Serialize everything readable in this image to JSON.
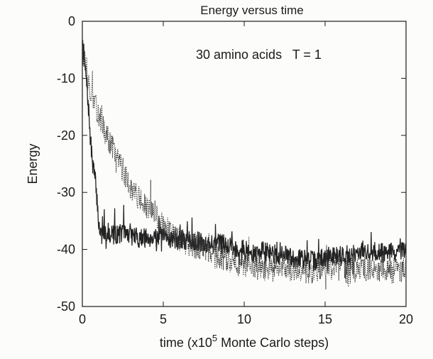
{
  "chart_data": {
    "type": "line",
    "title": "Energy versus time",
    "annotation": "30 amino acids   T = 1",
    "xlabel_prefix": "time (x10",
    "xlabel_exponent": "5",
    "xlabel_suffix": " Monte Carlo steps)",
    "ylabel": "Energy",
    "xlim": [
      0,
      20
    ],
    "ylim": [
      -50,
      0
    ],
    "xticks": [
      0,
      5,
      10,
      15,
      20
    ],
    "yticks": [
      0,
      -10,
      -20,
      -30,
      -40,
      -50
    ],
    "xtick_labels": [
      "0",
      "5",
      "10",
      "15",
      "20"
    ],
    "ytick_labels": [
      "0",
      "-10",
      "-20",
      "-30",
      "-40",
      "-50"
    ],
    "grid": false,
    "series": [
      {
        "style": "solid",
        "color": "#222222",
        "x": [
          0,
          0.1,
          0.2,
          0.3,
          0.4,
          0.5,
          0.6,
          0.7,
          0.8,
          0.9,
          1.0,
          1.1,
          1.2,
          1.5,
          2.0,
          2.5,
          3.0,
          3.5,
          4.0,
          4.5,
          5.0,
          5.5,
          6.0,
          6.5,
          7.0,
          7.5,
          8.0,
          8.5,
          8.8,
          9.0,
          9.5,
          10.0,
          10.5,
          11.0,
          11.5,
          12.0,
          12.5,
          13.0,
          13.5,
          14.0,
          14.5,
          15.0,
          15.5,
          16.0,
          16.5,
          17.0,
          17.2,
          17.5,
          18.0,
          18.5,
          19.0,
          19.5,
          20.0
        ],
        "values": [
          -3,
          -6,
          -9,
          -12,
          -16,
          -21,
          -24,
          -26,
          -28,
          -31,
          -35,
          -37,
          -37.5,
          -37,
          -37.5,
          -37,
          -37.5,
          -38,
          -38,
          -37.5,
          -38,
          -38,
          -38.5,
          -38.5,
          -38.5,
          -39,
          -39,
          -39,
          -39,
          -39,
          -40,
          -40,
          -41,
          -40.5,
          -40.5,
          -41,
          -41,
          -41.5,
          -41.5,
          -42,
          -42,
          -41.5,
          -41,
          -41,
          -41.5,
          -40.5,
          -40,
          -40.5,
          -40.5,
          -40.5,
          -40.5,
          -40.5,
          -40.5
        ],
        "noise_amp": 1.8,
        "spike_amp": 5.0,
        "seed": 7
      },
      {
        "style": "dotted",
        "color": "#333333",
        "x": [
          0,
          0.2,
          0.4,
          0.6,
          0.8,
          1.0,
          1.2,
          1.5,
          2.0,
          2.5,
          3.0,
          3.5,
          4.0,
          4.5,
          5.0,
          5.5,
          6.0,
          6.5,
          7.0,
          7.5,
          8.0,
          8.5,
          9.0,
          9.5,
          10.0,
          10.5,
          11.0,
          11.5,
          12.0,
          12.5,
          13.0,
          13.5,
          14.0,
          14.5,
          15.0,
          15.5,
          16.0,
          16.5,
          17.0,
          17.5,
          18.0,
          18.5,
          19.0,
          19.5,
          20.0
        ],
        "values": [
          -5,
          -8,
          -11,
          -13,
          -15,
          -16,
          -18,
          -20,
          -23,
          -26,
          -29,
          -31,
          -33,
          -34,
          -36,
          -37,
          -38,
          -39,
          -39.5,
          -40,
          -41,
          -41.5,
          -42,
          -42.5,
          -43,
          -43,
          -43.5,
          -43.5,
          -43.5,
          -43,
          -43.5,
          -43.5,
          -44,
          -43.5,
          -43.5,
          -43.5,
          -43.5,
          -44,
          -43.5,
          -43.5,
          -43.5,
          -43.5,
          -44,
          -43.5,
          -43.5
        ],
        "noise_amp": 2.2,
        "spike_amp": 6.0,
        "seed": 13
      }
    ]
  }
}
